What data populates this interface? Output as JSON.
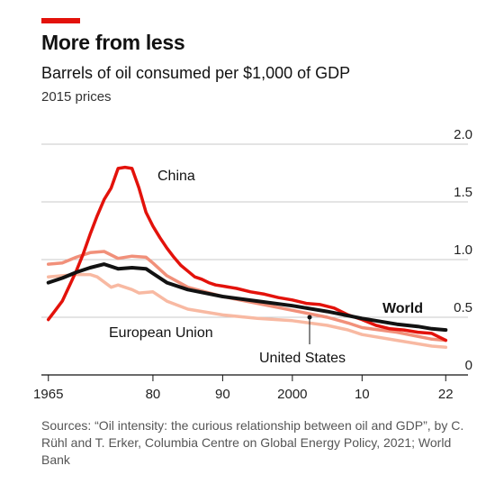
{
  "header": {
    "title": "More from less",
    "subtitle": "Barrels of oil consumed per $1,000 of GDP",
    "units": "2015 prices"
  },
  "source": "Sources: “Oil intensity: the curious relationship between oil and GDP”, by C. Rühl and T. Erker, Columbia Centre on Global Energy Policy, 2021; World Bank",
  "colors": {
    "china": "#e3120b",
    "world": "#121212",
    "european_union": "#f1907a",
    "united_states": "#f8b9a2",
    "accent": "#e3120b"
  },
  "chart_data": {
    "type": "line",
    "title": "More from less",
    "subtitle": "Barrels of oil consumed per $1,000 of GDP",
    "ylabel": "2015 prices",
    "xlim": [
      1964,
      2023
    ],
    "ylim": [
      0,
      2.0
    ],
    "x_ticks": [
      1965,
      1980,
      1990,
      2000,
      2010,
      2022
    ],
    "x_tick_labels": [
      "1965",
      "80",
      "90",
      "2000",
      "10",
      "22"
    ],
    "y_ticks": [
      0,
      0.5,
      1.0,
      1.5,
      2.0
    ],
    "y_tick_labels": [
      "0",
      "0.5",
      "1.0",
      "1.5",
      "2.0"
    ],
    "grid": true,
    "series": [
      {
        "name": "China",
        "color": "#e3120b",
        "x": [
          1965,
          1966,
          1967,
          1968,
          1969,
          1970,
          1971,
          1972,
          1973,
          1974,
          1975,
          1976,
          1977,
          1978,
          1979,
          1980,
          1981,
          1982,
          1983,
          1984,
          1985,
          1986,
          1987,
          1988,
          1989,
          1990,
          1992,
          1994,
          1996,
          1998,
          2000,
          2002,
          2004,
          2006,
          2008,
          2010,
          2012,
          2014,
          2016,
          2018,
          2020,
          2022
        ],
        "y": [
          0.48,
          0.56,
          0.64,
          0.77,
          0.9,
          1.05,
          1.22,
          1.38,
          1.52,
          1.62,
          1.79,
          1.8,
          1.79,
          1.62,
          1.41,
          1.29,
          1.19,
          1.1,
          1.02,
          0.95,
          0.9,
          0.85,
          0.83,
          0.8,
          0.78,
          0.77,
          0.75,
          0.72,
          0.7,
          0.67,
          0.65,
          0.62,
          0.61,
          0.58,
          0.52,
          0.48,
          0.43,
          0.4,
          0.39,
          0.37,
          0.36,
          0.3
        ]
      },
      {
        "name": "World",
        "color": "#121212",
        "x": [
          1965,
          1967,
          1969,
          1971,
          1973,
          1975,
          1977,
          1979,
          1980,
          1982,
          1985,
          1990,
          1995,
          2000,
          2005,
          2010,
          2015,
          2018,
          2020,
          2022
        ],
        "y": [
          0.8,
          0.84,
          0.89,
          0.93,
          0.96,
          0.92,
          0.93,
          0.92,
          0.88,
          0.8,
          0.74,
          0.68,
          0.64,
          0.6,
          0.55,
          0.49,
          0.44,
          0.42,
          0.4,
          0.39
        ]
      },
      {
        "name": "European Union",
        "color": "#f1907a",
        "x": [
          1965,
          1967,
          1969,
          1971,
          1973,
          1975,
          1977,
          1979,
          1980,
          1982,
          1985,
          1990,
          1995,
          2000,
          2005,
          2008,
          2010,
          2015,
          2020,
          2022
        ],
        "y": [
          0.96,
          0.97,
          1.02,
          1.06,
          1.07,
          1.01,
          1.03,
          1.02,
          0.97,
          0.86,
          0.76,
          0.68,
          0.62,
          0.56,
          0.5,
          0.45,
          0.41,
          0.37,
          0.31,
          0.3
        ]
      },
      {
        "name": "United States",
        "color": "#f8b9a2",
        "x": [
          1965,
          1967,
          1969,
          1971,
          1972,
          1974,
          1975,
          1977,
          1978,
          1980,
          1982,
          1985,
          1990,
          1995,
          2000,
          2005,
          2008,
          2010,
          2015,
          2020,
          2022
        ],
        "y": [
          0.85,
          0.86,
          0.87,
          0.87,
          0.85,
          0.76,
          0.78,
          0.74,
          0.71,
          0.72,
          0.64,
          0.57,
          0.52,
          0.49,
          0.47,
          0.43,
          0.39,
          0.35,
          0.3,
          0.25,
          0.24
        ]
      }
    ],
    "series_labels": [
      {
        "name": "China",
        "text": "China"
      },
      {
        "name": "World",
        "text": "World"
      },
      {
        "name": "European Union",
        "text": "European Union"
      },
      {
        "name": "United States",
        "text": "United States"
      }
    ]
  }
}
